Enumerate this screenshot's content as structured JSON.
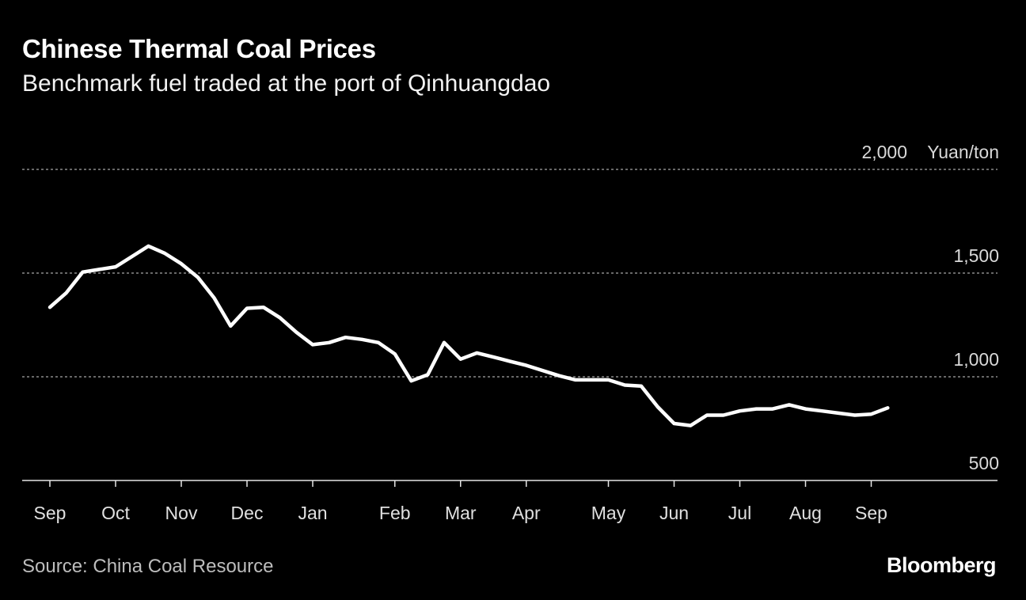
{
  "header": {
    "title": "Chinese Thermal Coal Prices",
    "subtitle": "Benchmark fuel traded at the port of Qinhuangdao"
  },
  "footer": {
    "source": "Source: China Coal Resource",
    "brand": "Bloomberg"
  },
  "colors": {
    "background": "#000000",
    "line": "#ffffff",
    "grid": "#8a8a8a",
    "text": "#ffffff",
    "muted_text": "#bdbdbd"
  },
  "chart_data": {
    "type": "line",
    "title": "Chinese Thermal Coal Prices",
    "subtitle": "Benchmark fuel traded at the port of Qinhuangdao",
    "unit": "Yuan/ton",
    "ylim": [
      500,
      2000
    ],
    "yticks": [
      {
        "value": 500,
        "label": "500"
      },
      {
        "value": 1000,
        "label": "1,000"
      },
      {
        "value": 1500,
        "label": "1,500"
      },
      {
        "value": 2000,
        "label": "2,000"
      }
    ],
    "x_is_month_index": true,
    "xlim": [
      0,
      14.3
    ],
    "xticks": [
      {
        "value": 0,
        "label": "Sep"
      },
      {
        "value": 1,
        "label": "Oct"
      },
      {
        "value": 2,
        "label": "Nov"
      },
      {
        "value": 3,
        "label": "Dec"
      },
      {
        "value": 4,
        "label": "Jan"
      },
      {
        "value": 5.25,
        "label": "Feb"
      },
      {
        "value": 6.25,
        "label": "Mar"
      },
      {
        "value": 7.25,
        "label": "Apr"
      },
      {
        "value": 8.5,
        "label": "May"
      },
      {
        "value": 9.5,
        "label": "Jun"
      },
      {
        "value": 10.5,
        "label": "Jul"
      },
      {
        "value": 11.5,
        "label": "Aug"
      },
      {
        "value": 12.5,
        "label": "Sep"
      }
    ],
    "grid": true,
    "series": [
      {
        "x": [
          0,
          0.25,
          0.5,
          1.0,
          1.25,
          1.5,
          1.75,
          2.0,
          2.25,
          2.5,
          2.75,
          3.0,
          3.25,
          3.5,
          3.75,
          4.0,
          4.25,
          4.5,
          4.75,
          5.0,
          5.25,
          5.5,
          5.75,
          6.0,
          6.25,
          6.5,
          6.75,
          7.0,
          7.25,
          7.5,
          7.75,
          8.0,
          8.25,
          8.5,
          8.75,
          9.0,
          9.25,
          9.5,
          9.75,
          10.0,
          10.25,
          10.5,
          10.75,
          11.0,
          11.25,
          11.5,
          11.75,
          12.0,
          12.25,
          12.5,
          12.75
        ],
        "values": [
          1335,
          1405,
          1505,
          1530,
          1580,
          1630,
          1595,
          1545,
          1480,
          1380,
          1245,
          1330,
          1335,
          1285,
          1215,
          1155,
          1165,
          1190,
          1180,
          1165,
          1110,
          980,
          1010,
          1165,
          1085,
          1115,
          1095,
          1075,
          1055,
          1030,
          1005,
          985,
          985,
          985,
          960,
          955,
          855,
          775,
          765,
          815,
          815,
          835,
          845,
          845,
          865,
          845,
          835,
          825,
          815,
          820,
          850
        ]
      }
    ]
  }
}
